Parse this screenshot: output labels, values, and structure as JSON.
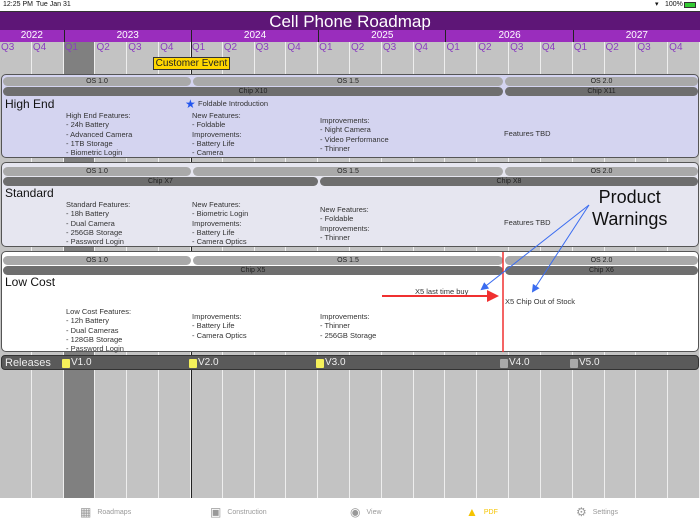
{
  "status": {
    "time": "12:25 PM",
    "date": "Tue Jan 31",
    "battery": "100%"
  },
  "title": "Cell Phone Roadmap",
  "years": [
    {
      "label": "2022",
      "quarters": 2
    },
    {
      "label": "2023",
      "quarters": 4
    },
    {
      "label": "2024",
      "quarters": 4
    },
    {
      "label": "2025",
      "quarters": 4
    },
    {
      "label": "2026",
      "quarters": 4
    },
    {
      "label": "2027",
      "quarters": 4
    }
  ],
  "quarters": [
    "Q3",
    "Q4",
    "Q1",
    "Q2",
    "Q3",
    "Q4",
    "Q1",
    "Q2",
    "Q3",
    "Q4",
    "Q1",
    "Q2",
    "Q3",
    "Q4",
    "Q1",
    "Q2",
    "Q3",
    "Q4",
    "Q1",
    "Q2",
    "Q3",
    "Q4"
  ],
  "highlight_quarter_index": 2,
  "customer_event": "Customer Event",
  "colors": {
    "title": "#5e1677",
    "years": "#9a2dbd",
    "quarter_label": "#8a3dc0",
    "event": "#ffd700",
    "warning_arrow": "#3a6cf0",
    "red": "#f03030",
    "release_done": "#f5f05a",
    "release_future": "#aaaaaa",
    "active_tab": "#f5c400"
  },
  "panels": [
    {
      "name": "High End",
      "os": [
        "OS 1.0",
        "OS 1.5",
        "OS 2.0"
      ],
      "chips": [
        "Chip X10",
        "Chip X11"
      ],
      "milestone": "Foldable Introduction",
      "notes": [
        "High End Features:\n- 24h Battery\n- Advanced Camera\n- 1TB Storage\n- Biometric Login",
        "New Features:\n- Foldable\nImprovements:\n- Battery Life\n- Camera",
        "Improvements:\n- Night Camera\n- Video Performance\n- Thinner",
        "Features TBD"
      ]
    },
    {
      "name": "Standard",
      "os": [
        "OS 1.0",
        "OS 1.5",
        "OS 2.0"
      ],
      "chips": [
        "Chip X7",
        "Chip X8"
      ],
      "notes": [
        "Standard Features:\n- 18h Battery\n- Dual Camera\n- 256GB Storage\n- Password Login",
        "New Features:\n- Biometric Login\nImprovements:\n- Battery Life\n- Camera Optics",
        "New Features:\n- Foldable\nImprovements:\n- Thinner",
        "Features TBD"
      ]
    },
    {
      "name": "Low Cost",
      "os": [
        "OS 1.0",
        "OS 1.5",
        "OS 2.0"
      ],
      "chips": [
        "Chip X5",
        "Chip X6"
      ],
      "notes": [
        "Low Cost Features:\n- 12h Battery\n- Dual Cameras\n- 128GB Storage\n- Password Login",
        "Improvements:\n- Battery Life\n- Camera Optics",
        "Improvements:\n- Thinner\n- 256GB Storage"
      ],
      "last_buy": "X5 last time buy",
      "out_of_stock": "X5 Chip Out of Stock"
    }
  ],
  "warning": "Product\nWarnings",
  "releases": {
    "label": "Releases",
    "items": [
      {
        "label": "V1.0",
        "done": true
      },
      {
        "label": "V2.0",
        "done": true
      },
      {
        "label": "V3.0",
        "done": true
      },
      {
        "label": "V4.0",
        "done": false
      },
      {
        "label": "V5.0",
        "done": false
      }
    ]
  },
  "tabs": [
    {
      "label": "Roadmaps",
      "icon": "map-icon"
    },
    {
      "label": "Construction",
      "icon": "construction-icon"
    },
    {
      "label": "View",
      "icon": "eye-icon"
    },
    {
      "label": "PDF",
      "icon": "share-icon",
      "active": true
    },
    {
      "label": "Settings",
      "icon": "gear-icon"
    }
  ]
}
